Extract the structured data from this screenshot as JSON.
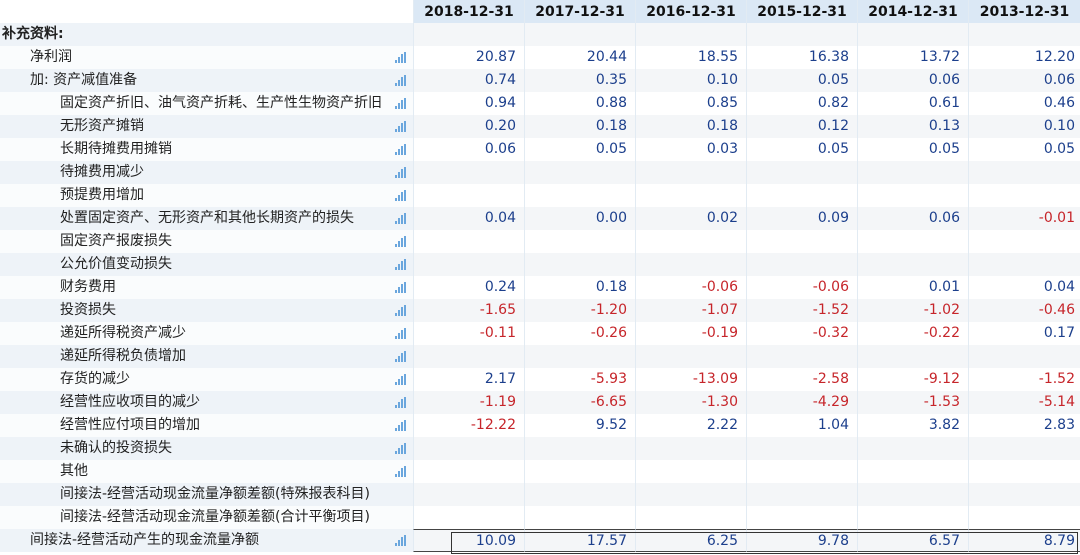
{
  "columns": [
    "2018-12-31",
    "2017-12-31",
    "2016-12-31",
    "2015-12-31",
    "2014-12-31",
    "2013-12-31"
  ],
  "section_title": "补充资料:",
  "rows": [
    {
      "label": "净利润",
      "level": 1,
      "chart": true,
      "values": [
        "20.87",
        "20.44",
        "18.55",
        "16.38",
        "13.72",
        "12.20"
      ]
    },
    {
      "label": "加: 资产减值准备",
      "level": 1,
      "chart": true,
      "values": [
        "0.74",
        "0.35",
        "0.10",
        "0.05",
        "0.06",
        "0.06"
      ]
    },
    {
      "label": "固定资产折旧、油气资产折耗、生产性生物资产折旧",
      "level": 2,
      "chart": true,
      "values": [
        "0.94",
        "0.88",
        "0.85",
        "0.82",
        "0.61",
        "0.46"
      ]
    },
    {
      "label": "无形资产摊销",
      "level": 2,
      "chart": true,
      "values": [
        "0.20",
        "0.18",
        "0.18",
        "0.12",
        "0.13",
        "0.10"
      ]
    },
    {
      "label": "长期待摊费用摊销",
      "level": 2,
      "chart": true,
      "values": [
        "0.06",
        "0.05",
        "0.03",
        "0.05",
        "0.05",
        "0.05"
      ]
    },
    {
      "label": "待摊费用减少",
      "level": 2,
      "chart": true,
      "values": [
        "",
        "",
        "",
        "",
        "",
        ""
      ]
    },
    {
      "label": "预提费用增加",
      "level": 2,
      "chart": true,
      "values": [
        "",
        "",
        "",
        "",
        "",
        ""
      ]
    },
    {
      "label": "处置固定资产、无形资产和其他长期资产的损失",
      "level": 2,
      "chart": true,
      "values": [
        "0.04",
        "0.00",
        "0.02",
        "0.09",
        "0.06",
        "-0.01"
      ]
    },
    {
      "label": "固定资产报废损失",
      "level": 2,
      "chart": true,
      "values": [
        "",
        "",
        "",
        "",
        "",
        ""
      ]
    },
    {
      "label": "公允价值变动损失",
      "level": 2,
      "chart": true,
      "values": [
        "",
        "",
        "",
        "",
        "",
        ""
      ]
    },
    {
      "label": "财务费用",
      "level": 2,
      "chart": true,
      "values": [
        "0.24",
        "0.18",
        "-0.06",
        "-0.06",
        "0.01",
        "0.04"
      ]
    },
    {
      "label": "投资损失",
      "level": 2,
      "chart": true,
      "values": [
        "-1.65",
        "-1.20",
        "-1.07",
        "-1.52",
        "-1.02",
        "-0.46"
      ]
    },
    {
      "label": "递延所得税资产减少",
      "level": 2,
      "chart": true,
      "values": [
        "-0.11",
        "-0.26",
        "-0.19",
        "-0.32",
        "-0.22",
        "0.17"
      ]
    },
    {
      "label": "递延所得税负债增加",
      "level": 2,
      "chart": true,
      "values": [
        "",
        "",
        "",
        "",
        "",
        ""
      ]
    },
    {
      "label": "存货的减少",
      "level": 2,
      "chart": true,
      "values": [
        "2.17",
        "-5.93",
        "-13.09",
        "-2.58",
        "-9.12",
        "-1.52"
      ]
    },
    {
      "label": "经营性应收项目的减少",
      "level": 2,
      "chart": true,
      "values": [
        "-1.19",
        "-6.65",
        "-1.30",
        "-4.29",
        "-1.53",
        "-5.14"
      ]
    },
    {
      "label": "经营性应付项目的增加",
      "level": 2,
      "chart": true,
      "values": [
        "-12.22",
        "9.52",
        "2.22",
        "1.04",
        "3.82",
        "2.83"
      ]
    },
    {
      "label": "未确认的投资损失",
      "level": 2,
      "chart": true,
      "values": [
        "",
        "",
        "",
        "",
        "",
        ""
      ]
    },
    {
      "label": "其他",
      "level": 2,
      "chart": true,
      "values": [
        "",
        "",
        "",
        "",
        "",
        ""
      ]
    },
    {
      "label": "间接法-经营活动现金流量净额差额(特殊报表科目)",
      "level": 2,
      "chart": false,
      "values": [
        "",
        "",
        "",
        "",
        "",
        ""
      ]
    },
    {
      "label": "间接法-经营活动现金流量净额差额(合计平衡项目)",
      "level": 2,
      "chart": false,
      "values": [
        "",
        "",
        "",
        "",
        "",
        ""
      ]
    },
    {
      "label": "间接法-经营活动产生的现金流量净额",
      "level": 1,
      "chart": true,
      "values": [
        "10.09",
        "17.57",
        "6.25",
        "9.78",
        "6.57",
        "8.79"
      ]
    }
  ],
  "colors": {
    "positive": "#1c3f8c",
    "negative": "#c6252a",
    "header_bg": "#dbe8f5",
    "chart_icon": "#6aa6dd"
  }
}
